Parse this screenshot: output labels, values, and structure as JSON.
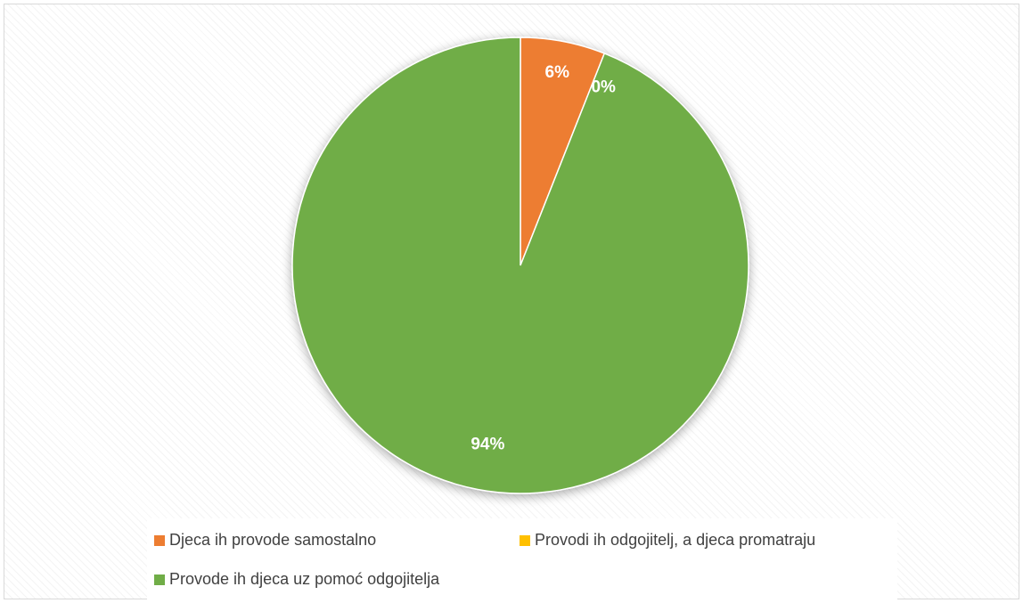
{
  "chart_data": {
    "type": "pie",
    "title": "",
    "slices": [
      {
        "name": "Djeca ih provode samostalno",
        "value": 6,
        "label": "6%",
        "color": "#ED7D31"
      },
      {
        "name": "Provodi ih odgojitelj, a djeca promatraju",
        "value": 0,
        "label": "0%",
        "color": "#FFC000"
      },
      {
        "name": "Provode ih djeca uz pomoć odgojitelja",
        "value": 94,
        "label": "94%",
        "color": "#70AD47"
      }
    ],
    "legend_position": "bottom",
    "start_angle": "top, clockwise"
  }
}
